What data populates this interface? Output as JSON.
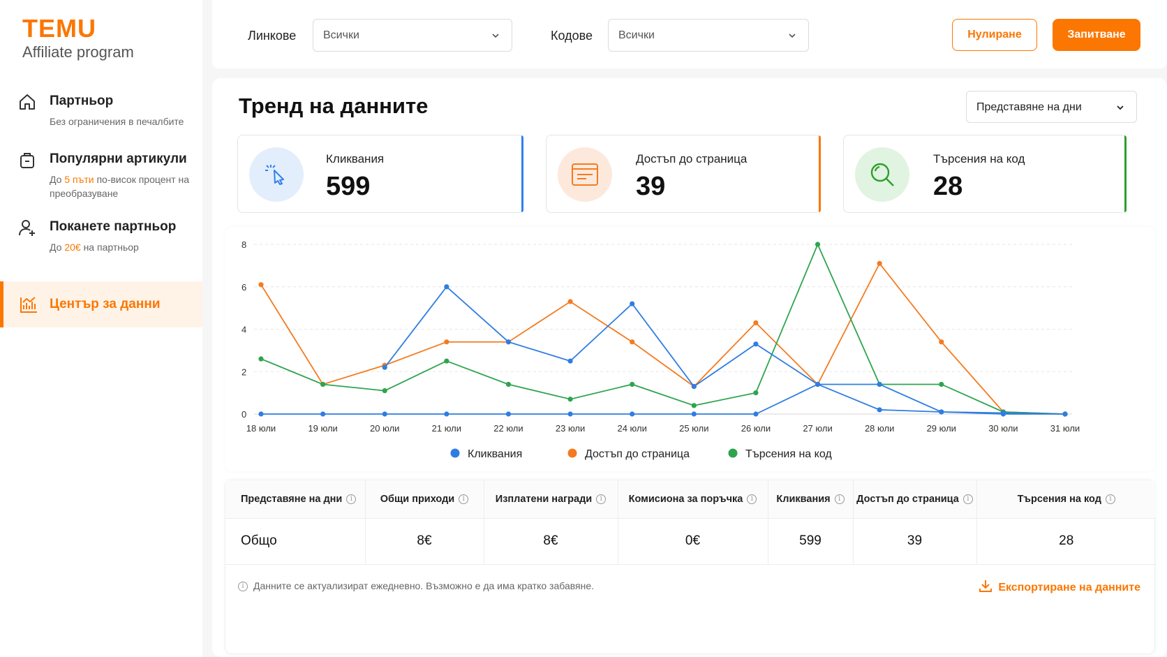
{
  "brand": {
    "name": "TEMU",
    "subtitle": "Affiliate program",
    "accent": "#fb7701"
  },
  "sidebar": {
    "items": [
      {
        "icon": "home-icon",
        "title": "Партньор",
        "desc": "Без ограничения в печалбите"
      },
      {
        "icon": "bag-icon",
        "title": "Популярни артикули",
        "desc_pre": "До ",
        "desc_hl": "5 пъти",
        "desc_post": " по-висок процент на преобразуване"
      },
      {
        "icon": "add-user-icon",
        "title": "Поканете партньор",
        "desc_pre": "До ",
        "desc_hl": "20€",
        "desc_post": " на партньор"
      },
      {
        "icon": "chart-icon",
        "title": "Център за данни",
        "active": true
      }
    ]
  },
  "filters": {
    "links_label": "Линкове",
    "links_value": "Всички",
    "codes_label": "Кодове",
    "codes_value": "Всички",
    "reset_label": "Нулиране",
    "query_label": "Запитване"
  },
  "main": {
    "title": "Тренд на данните",
    "view_select": "Представяне на дни",
    "cards": [
      {
        "title": "Кликвания",
        "value": "599",
        "color": "#2f80ed",
        "icon": "pointer-click-icon"
      },
      {
        "title": "Достъп до страница",
        "value": "39",
        "color": "#fb7701",
        "icon": "browser-page-icon"
      },
      {
        "title": "Търсения на код",
        "value": "28",
        "color": "#2ca02c",
        "icon": "magnifier-icon"
      }
    ]
  },
  "chart_data": {
    "type": "line",
    "categories": [
      "18 юли",
      "19 юли",
      "20 юли",
      "21 юли",
      "22 юли",
      "23 юли",
      "24 юли",
      "25 юли",
      "26 юли",
      "27 юли",
      "28 юли",
      "29 юли",
      "30 юли",
      "31 юли"
    ],
    "ylim": [
      0,
      8
    ],
    "yticks": [
      0,
      2,
      4,
      6,
      8
    ],
    "grid": true,
    "legend": "bottom",
    "series": [
      {
        "name": "Кликвания",
        "color": "#2f7de1",
        "values": [
          0,
          0,
          0,
          0,
          0,
          0,
          0,
          0,
          0,
          1.4,
          0.2,
          0.1,
          0,
          0
        ]
      },
      {
        "name": "Кликвания",
        "color": "#2f7de1",
        "values": [
          null,
          null,
          2.2,
          6,
          3.4,
          2.5,
          5.2,
          1.3,
          3.3,
          1.4,
          1.4,
          0.1,
          0.05,
          0
        ],
        "overlay": true
      },
      {
        "name": "Достъп до страница",
        "color": "#f47b20",
        "values": [
          6.1,
          1.4,
          2.3,
          3.4,
          3.4,
          5.3,
          3.4,
          1.3,
          4.3,
          1.4,
          7.1,
          3.4,
          0.1,
          0
        ]
      },
      {
        "name": "Търсения на код",
        "color": "#2ea44f",
        "values": [
          2.6,
          1.4,
          1.1,
          2.5,
          1.4,
          0.7,
          1.4,
          0.4,
          1,
          8,
          1.4,
          1.4,
          0.1,
          0
        ]
      }
    ],
    "legend_items": [
      {
        "name": "Кликвания",
        "color": "#2f7de1"
      },
      {
        "name": "Достъп до страница",
        "color": "#f47b20"
      },
      {
        "name": "Търсения на код",
        "color": "#2ea44f"
      }
    ]
  },
  "table": {
    "headers": [
      "Представяне на дни",
      "Общи приходи",
      "Изплатени награди",
      "Комисиона за поръчка",
      "Кликвания",
      "Достъп до страница",
      "Търсения на код"
    ],
    "row": [
      "Общо",
      "8€",
      "8€",
      "0€",
      "599",
      "39",
      "28"
    ],
    "note": "Данните се актуализират ежедневно. Възможно е да има кратко забавяне.",
    "export_label": "Експортиране на данните"
  }
}
